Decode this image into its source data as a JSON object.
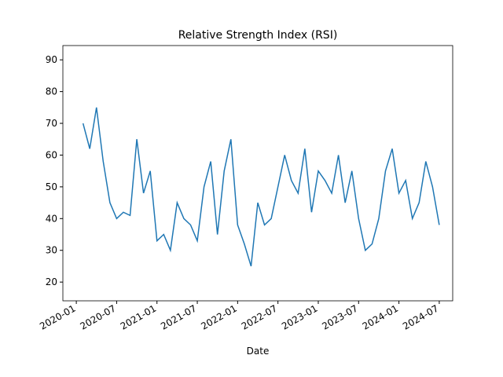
{
  "chart_data": {
    "type": "line",
    "title": "Relative Strength Index (RSI)",
    "x_label": "Date",
    "x": [
      "2020-02",
      "2020-03",
      "2020-04",
      "2020-05",
      "2020-06",
      "2020-07",
      "2020-08",
      "2020-09",
      "2020-10",
      "2020-11",
      "2020-12",
      "2021-01",
      "2021-02",
      "2021-03",
      "2021-04",
      "2021-05",
      "2021-06",
      "2021-07",
      "2021-08",
      "2021-09",
      "2021-10",
      "2021-11",
      "2021-12",
      "2022-01",
      "2022-02",
      "2022-03",
      "2022-04",
      "2022-05",
      "2022-06",
      "2022-07",
      "2022-08",
      "2022-09",
      "2022-10",
      "2022-11",
      "2022-12",
      "2023-01",
      "2023-02",
      "2023-03",
      "2023-04",
      "2023-05",
      "2023-06",
      "2023-07",
      "2023-08",
      "2023-09",
      "2023-10",
      "2023-11",
      "2023-12",
      "2024-01",
      "2024-02",
      "2024-03",
      "2024-04",
      "2024-05",
      "2024-06",
      "2024-07"
    ],
    "series": [
      {
        "name": "RSI",
        "color": "#1f77b4",
        "values": [
          70,
          62,
          75,
          58,
          45,
          40,
          42,
          41,
          65,
          48,
          55,
          33,
          35,
          30,
          45,
          40,
          38,
          33,
          50,
          58,
          35,
          55,
          65,
          38,
          32,
          25,
          45,
          38,
          40,
          50,
          60,
          52,
          48,
          62,
          42,
          55,
          52,
          48,
          60,
          45,
          55,
          40,
          30,
          32,
          40,
          55,
          62,
          48,
          52,
          40,
          45,
          58,
          50,
          38
        ]
      }
    ],
    "xlim": [
      "2019-11",
      "2024-09"
    ],
    "xticks": [
      "2020-01",
      "2020-07",
      "2021-01",
      "2021-07",
      "2022-01",
      "2022-07",
      "2023-01",
      "2023-07",
      "2024-01",
      "2024-07"
    ],
    "ylim": [
      14.1,
      94.5
    ],
    "yticks": [
      20,
      30,
      40,
      50,
      60,
      70,
      80,
      90
    ]
  }
}
